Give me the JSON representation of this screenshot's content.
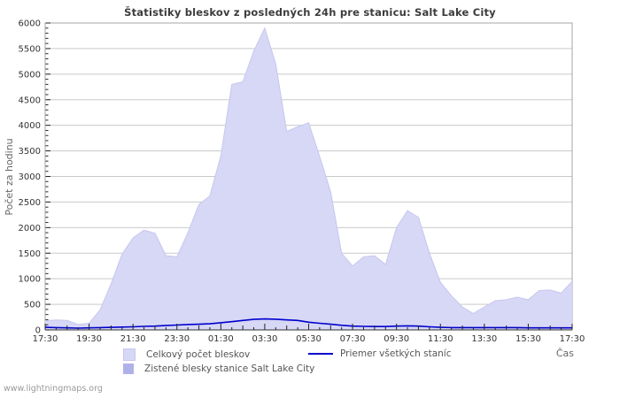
{
  "title": "Štatistiky bleskov z posledných 24h pre stanicu: Salt Lake City",
  "watermark": "www.lightningmaps.org",
  "legend": {
    "total_label": "Celkový počet bleskov",
    "average_label": "Priemer všetkých staníc",
    "station_label": "Zistené blesky stanice Salt Lake City"
  },
  "colors": {
    "total_fill": "#d7d7f6",
    "total_edge": "#c7c7ef",
    "station_fill": "#b1b1e9",
    "average_line": "#0000cc",
    "grid": "#c9c9c9",
    "border": "#a5a5a5",
    "tick": "#222222",
    "tick_label": "#333333",
    "axis_title": "#666666"
  },
  "chart_data": {
    "type": "area",
    "title": "Štatistiky bleskov z posledných 24h pre stanicu: Salt Lake City",
    "xlabel": "Čas",
    "ylabel": "Počet za hodinu",
    "ylim": [
      0,
      6000
    ],
    "y_tick_step": 500,
    "y_minor_step": 100,
    "grid": "horizontal",
    "legend_position": "bottom",
    "x": [
      "17:30",
      "18:00",
      "18:30",
      "19:00",
      "19:30",
      "20:00",
      "20:30",
      "21:00",
      "21:30",
      "22:00",
      "22:30",
      "23:00",
      "23:30",
      "00:00",
      "00:30",
      "01:00",
      "01:30",
      "02:00",
      "02:30",
      "03:00",
      "03:30",
      "04:00",
      "04:30",
      "05:00",
      "05:30",
      "06:00",
      "06:30",
      "07:00",
      "07:30",
      "08:00",
      "08:30",
      "09:00",
      "09:30",
      "10:00",
      "10:30",
      "11:00",
      "11:30",
      "12:00",
      "12:30",
      "13:00",
      "13:30",
      "14:00",
      "14:30",
      "15:00",
      "15:30",
      "16:00",
      "16:30",
      "17:00",
      "17:30"
    ],
    "x_label_every": 4,
    "series": [
      {
        "name": "Celkový počet bleskov",
        "kind": "area",
        "values": [
          180,
          195,
          185,
          105,
          130,
          390,
          900,
          1480,
          1800,
          1950,
          1890,
          1450,
          1430,
          1900,
          2450,
          2620,
          3400,
          4800,
          4850,
          5450,
          5900,
          5200,
          3880,
          3970,
          4050,
          3390,
          2700,
          1500,
          1250,
          1430,
          1450,
          1280,
          2000,
          2330,
          2200,
          1500,
          930,
          670,
          450,
          320,
          450,
          570,
          590,
          640,
          590,
          770,
          780,
          720,
          950
        ]
      },
      {
        "name": "Zistené blesky stanice Salt Lake City",
        "kind": "area",
        "values": [
          0,
          0,
          0,
          0,
          0,
          0,
          0,
          0,
          0,
          0,
          0,
          0,
          0,
          0,
          0,
          0,
          0,
          0,
          0,
          0,
          0,
          0,
          0,
          0,
          0,
          0,
          0,
          0,
          0,
          0,
          0,
          0,
          0,
          0,
          0,
          0,
          0,
          0,
          0,
          0,
          0,
          0,
          0,
          0,
          0,
          0,
          0,
          0,
          0
        ]
      },
      {
        "name": "Priemer všetkých staníc",
        "kind": "line",
        "values": [
          50,
          45,
          40,
          35,
          40,
          45,
          50,
          55,
          60,
          70,
          75,
          85,
          95,
          105,
          110,
          120,
          140,
          160,
          185,
          205,
          215,
          210,
          195,
          185,
          150,
          130,
          110,
          90,
          75,
          70,
          65,
          65,
          75,
          80,
          75,
          60,
          50,
          45,
          45,
          45,
          45,
          45,
          45,
          45,
          40,
          40,
          40,
          40,
          40
        ]
      }
    ]
  }
}
